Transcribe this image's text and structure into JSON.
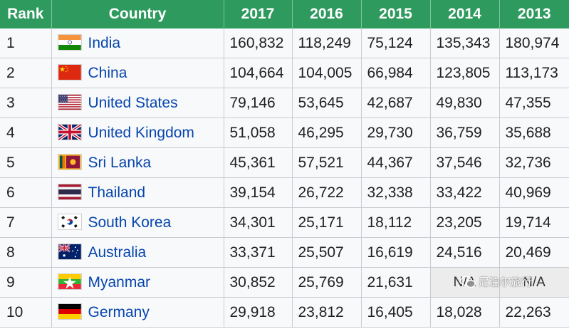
{
  "table": {
    "headers": {
      "rank": "Rank",
      "country": "Country",
      "y2017": "2017",
      "y2016": "2016",
      "y2015": "2015",
      "y2014": "2014",
      "y2013": "2013"
    },
    "rows": [
      {
        "rank": "1",
        "country": "India",
        "flag": "india-flag",
        "v2017": "160,832",
        "v2016": "118,249",
        "v2015": "75,124",
        "v2014": "135,343",
        "v2013": "180,974"
      },
      {
        "rank": "2",
        "country": "China",
        "flag": "china-flag",
        "v2017": "104,664",
        "v2016": "104,005",
        "v2015": "66,984",
        "v2014": "123,805",
        "v2013": "113,173"
      },
      {
        "rank": "3",
        "country": "United States",
        "flag": "usa-flag",
        "v2017": "79,146",
        "v2016": "53,645",
        "v2015": "42,687",
        "v2014": "49,830",
        "v2013": "47,355"
      },
      {
        "rank": "4",
        "country": "United Kingdom",
        "flag": "uk-flag",
        "v2017": "51,058",
        "v2016": "46,295",
        "v2015": "29,730",
        "v2014": "36,759",
        "v2013": "35,688"
      },
      {
        "rank": "5",
        "country": "Sri Lanka",
        "flag": "sri-lanka-flag",
        "v2017": "45,361",
        "v2016": "57,521",
        "v2015": "44,367",
        "v2014": "37,546",
        "v2013": "32,736"
      },
      {
        "rank": "6",
        "country": "Thailand",
        "flag": "thailand-flag",
        "v2017": "39,154",
        "v2016": "26,722",
        "v2015": "32,338",
        "v2014": "33,422",
        "v2013": "40,969"
      },
      {
        "rank": "7",
        "country": "South Korea",
        "flag": "south-korea-flag",
        "v2017": "34,301",
        "v2016": "25,171",
        "v2015": "18,112",
        "v2014": "23,205",
        "v2013": "19,714"
      },
      {
        "rank": "8",
        "country": "Australia",
        "flag": "australia-flag",
        "v2017": "33,371",
        "v2016": "25,507",
        "v2015": "16,619",
        "v2014": "24,516",
        "v2013": "20,469"
      },
      {
        "rank": "9",
        "country": "Myanmar",
        "flag": "myanmar-flag",
        "v2017": "30,852",
        "v2016": "25,769",
        "v2015": "21,631",
        "v2014": "N/A",
        "v2013": "N/A"
      },
      {
        "rank": "10",
        "country": "Germany",
        "flag": "germany-flag",
        "v2017": "29,918",
        "v2016": "23,812",
        "v2015": "16,405",
        "v2014": "18,028",
        "v2013": "22,263"
      }
    ]
  },
  "watermark": {
    "text": "尼泊尔旅行",
    "icon": "wechat-icon"
  },
  "colors": {
    "header_bg": "#2e9a5e",
    "link": "#0645ad",
    "na_bg": "#ececec"
  }
}
